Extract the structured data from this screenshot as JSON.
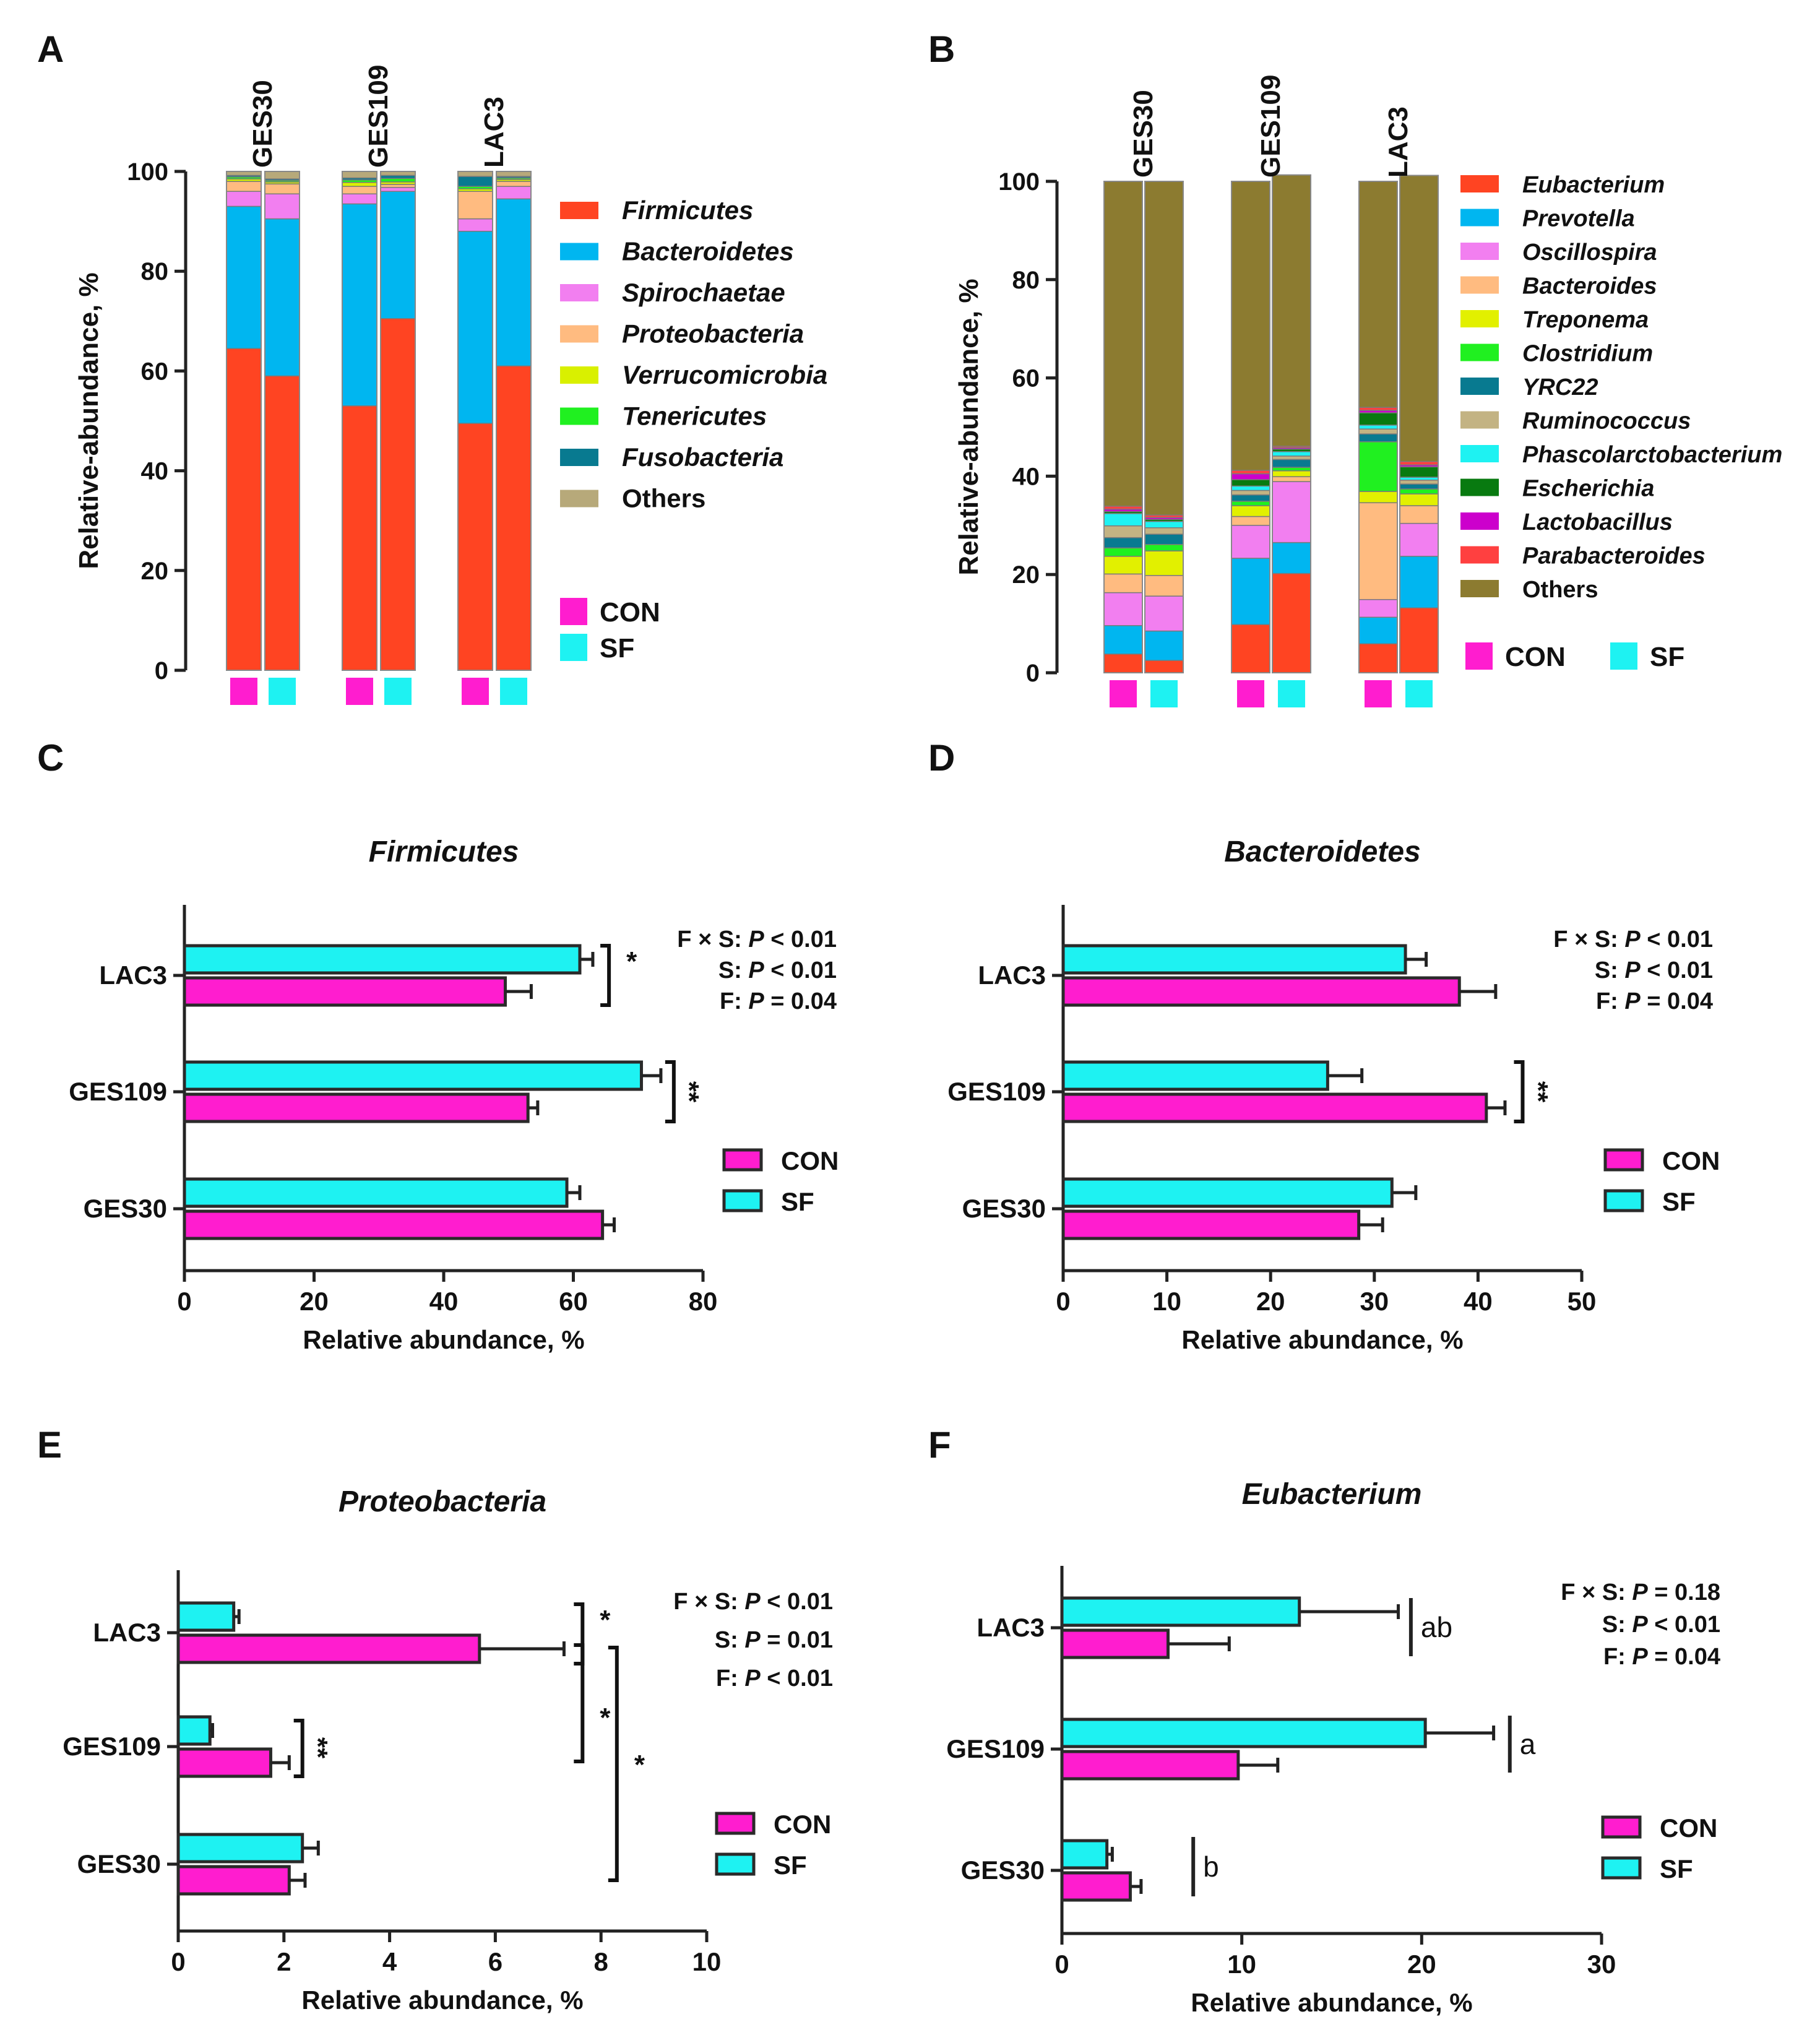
{
  "colors": {
    "CON": "#ff1dcf",
    "SF": "#1ef2f2",
    "Firmicutes": "#ff4422",
    "Bacteroidetes": "#00b6f0",
    "Spirochaetae": "#f27ff0",
    "Proteobacteria": "#ffbb80",
    "Verrucomicrobia": "#d9f000",
    "Tenericutes": "#20f020",
    "Fusobacteria": "#087a90",
    "Others": "#b7a97a",
    "Eubacterium": "#ff4422",
    "Prevotella": "#00b6f0",
    "Oscillospira": "#f27ff0",
    "Bacteroides": "#ffbb80",
    "Treponema": "#e2f000",
    "Clostridium": "#20f020",
    "YRC22": "#087a90",
    "Ruminococcus": "#c3b383",
    "Phascolarctobacterium": "#1ef2f2",
    "Escherichia": "#087a10",
    "Lactobacillus": "#cc00cc",
    "Parabacteroides": "#ff4040",
    "OthersGenus": "#8c7b30"
  },
  "panels": {
    "A": {
      "label": "A"
    },
    "B": {
      "label": "B"
    },
    "C": {
      "label": "C"
    },
    "D": {
      "label": "D"
    },
    "E": {
      "label": "E"
    },
    "F": {
      "label": "F"
    }
  },
  "chart_data": [
    {
      "id": "A",
      "type": "bar",
      "stacked": true,
      "ylabel": "Relative-abundance, %",
      "ylim": [
        0,
        100
      ],
      "yticks": [
        "0",
        "20",
        "40",
        "60",
        "80",
        "100"
      ],
      "groups": [
        "GES30",
        "GES109",
        "LAC3"
      ],
      "treatments": [
        "CON",
        "SF"
      ],
      "legend": [
        {
          "name": "Firmicutes",
          "italic": true
        },
        {
          "name": "Bacteroidetes",
          "italic": true
        },
        {
          "name": "Spirochaetae",
          "italic": true
        },
        {
          "name": "Proteobacteria",
          "italic": true
        },
        {
          "name": "Verrucomicrobia",
          "italic": true
        },
        {
          "name": "Tenericutes",
          "italic": true
        },
        {
          "name": "Fusobacteria",
          "italic": true
        },
        {
          "name": "Others",
          "italic": false
        }
      ],
      "treatment_legend": [
        "CON",
        "SF"
      ],
      "series": [
        {
          "name": "Firmicutes",
          "values": [
            64.5,
            59.0,
            53.0,
            70.5,
            49.5,
            61.0
          ]
        },
        {
          "name": "Bacteroidetes",
          "values": [
            28.5,
            31.5,
            40.5,
            25.5,
            38.5,
            33.5
          ]
        },
        {
          "name": "Spirochaetae",
          "values": [
            3.0,
            5.0,
            2.0,
            0.8,
            2.5,
            2.5
          ]
        },
        {
          "name": "Proteobacteria",
          "values": [
            2.0,
            2.0,
            1.5,
            0.6,
            5.5,
            1.0
          ]
        },
        {
          "name": "Verrucomicrobia",
          "values": [
            0.5,
            0.4,
            0.8,
            0.5,
            0.5,
            0.4
          ]
        },
        {
          "name": "Tenericutes",
          "values": [
            0.4,
            0.3,
            0.5,
            0.7,
            0.5,
            0.3
          ]
        },
        {
          "name": "Fusobacteria",
          "values": [
            0.3,
            0.3,
            0.4,
            0.6,
            2.0,
            0.3
          ]
        },
        {
          "name": "Others",
          "values": [
            0.8,
            1.5,
            1.3,
            0.8,
            1.0,
            1.0
          ]
        }
      ]
    },
    {
      "id": "B",
      "type": "bar",
      "stacked": true,
      "ylabel": "Relative-abundance, %",
      "ylim": [
        0,
        100
      ],
      "yticks": [
        "0",
        "20",
        "40",
        "60",
        "80",
        "100"
      ],
      "groups": [
        "GES30",
        "GES109",
        "LAC3"
      ],
      "treatments": [
        "CON",
        "SF"
      ],
      "legend": [
        {
          "name": "Eubacterium",
          "italic": true
        },
        {
          "name": "Prevotella",
          "italic": true
        },
        {
          "name": "Oscillospira",
          "italic": true
        },
        {
          "name": "Bacteroides",
          "italic": true
        },
        {
          "name": "Treponema",
          "italic": true
        },
        {
          "name": "Clostridium",
          "italic": true
        },
        {
          "name": "YRC22",
          "italic": true
        },
        {
          "name": "Ruminococcus",
          "italic": true
        },
        {
          "name": "Phascolarctobacterium",
          "italic": true
        },
        {
          "name": "Escherichia",
          "italic": true
        },
        {
          "name": "Lactobacillus",
          "italic": true
        },
        {
          "name": "Parabacteroides",
          "italic": true
        },
        {
          "name": "Others",
          "italic": false
        }
      ],
      "treatment_legend": [
        "CON",
        "SF"
      ],
      "series": [
        {
          "name": "Eubacterium",
          "values": [
            3.8,
            2.5,
            9.8,
            20.2,
            5.9,
            13.2
          ]
        },
        {
          "name": "Prevotella",
          "values": [
            5.8,
            6.0,
            13.5,
            6.3,
            5.4,
            10.5
          ]
        },
        {
          "name": "Oscillospira",
          "values": [
            6.7,
            7.1,
            6.7,
            12.4,
            3.6,
            6.7
          ]
        },
        {
          "name": "Bacteroides",
          "values": [
            3.8,
            4.2,
            1.8,
            1.0,
            19.7,
            3.6
          ]
        },
        {
          "name": "Treponema",
          "values": [
            3.6,
            5.0,
            2.2,
            1.2,
            2.3,
            2.4
          ]
        },
        {
          "name": "Clostridium",
          "values": [
            1.7,
            1.3,
            0.9,
            0.7,
            10.1,
            1.0
          ]
        },
        {
          "name": "YRC22",
          "values": [
            2.1,
            2.1,
            1.3,
            1.6,
            1.6,
            1.0
          ]
        },
        {
          "name": "Ruminococcus",
          "values": [
            2.4,
            1.3,
            0.9,
            0.7,
            1.0,
            0.8
          ]
        },
        {
          "name": "Phascolarctobacterium",
          "values": [
            2.5,
            1.3,
            0.9,
            0.9,
            0.8,
            0.6
          ]
        },
        {
          "name": "Escherichia",
          "values": [
            0.4,
            0.4,
            1.3,
            0.5,
            2.5,
            2.1
          ]
        },
        {
          "name": "Lactobacillus",
          "values": [
            0.5,
            0.4,
            1.2,
            0.3,
            0.5,
            0.4
          ]
        },
        {
          "name": "Parabacteroides",
          "values": [
            0.6,
            0.5,
            0.7,
            0.3,
            0.6,
            0.7
          ]
        },
        {
          "name": "Others",
          "values": [
            66.1,
            67.9,
            58.8,
            55.2,
            46.0,
            58.2
          ]
        }
      ]
    },
    {
      "id": "C",
      "type": "bar",
      "orientation": "horizontal",
      "title": "Firmicutes",
      "title_italic": true,
      "xlabel": "Relative abundance, %",
      "xlim": [
        0,
        80
      ],
      "xticks": [
        "0",
        "20",
        "40",
        "60",
        "80"
      ],
      "groups": [
        "GES30",
        "GES109",
        "LAC3"
      ],
      "series": [
        {
          "name": "CON",
          "values": [
            64.5,
            53.0,
            49.5
          ],
          "errors": [
            1.8,
            1.5,
            4.0
          ]
        },
        {
          "name": "SF",
          "values": [
            59.0,
            70.5,
            61.0
          ],
          "errors": [
            2.0,
            3.0,
            2.0
          ]
        }
      ],
      "significance": [
        {
          "group": "LAC3",
          "label": "*",
          "type": "pair"
        },
        {
          "group": "GES109",
          "label": "**",
          "type": "pair",
          "rotated": true
        }
      ],
      "stats": [
        {
          "prefix": "F × S: ",
          "p": "P",
          "suffix": " < 0.01"
        },
        {
          "prefix": "S: ",
          "p": "P",
          "suffix": " < 0.01"
        },
        {
          "prefix": "F: ",
          "p": "P",
          "suffix": " = 0.04"
        }
      ],
      "legend": [
        "CON",
        "SF"
      ]
    },
    {
      "id": "D",
      "type": "bar",
      "orientation": "horizontal",
      "title": "Bacteroidetes",
      "title_italic": true,
      "xlabel": "Relative abundance, %",
      "xlim": [
        0,
        50
      ],
      "xticks": [
        "0",
        "10",
        "20",
        "30",
        "40",
        "50"
      ],
      "groups": [
        "GES30",
        "GES109",
        "LAC3"
      ],
      "series": [
        {
          "name": "CON",
          "values": [
            28.5,
            40.8,
            38.2
          ],
          "errors": [
            2.3,
            1.8,
            3.5
          ]
        },
        {
          "name": "SF",
          "values": [
            31.7,
            25.5,
            33.0
          ],
          "errors": [
            2.3,
            3.3,
            2.0
          ]
        }
      ],
      "significance": [
        {
          "group": "GES109",
          "label": "**",
          "type": "pair",
          "rotated": true
        }
      ],
      "stats": [
        {
          "prefix": "F × S: ",
          "p": "P",
          "suffix": " < 0.01"
        },
        {
          "prefix": "S: ",
          "p": "P",
          "suffix": " < 0.01"
        },
        {
          "prefix": "F: ",
          "p": "P",
          "suffix": " = 0.04"
        }
      ],
      "legend": [
        "CON",
        "SF"
      ]
    },
    {
      "id": "E",
      "type": "bar",
      "orientation": "horizontal",
      "title": "Proteobacteria",
      "title_italic": true,
      "xlabel": "Relative abundance, %",
      "xlim": [
        0,
        10
      ],
      "xticks": [
        "0",
        "2",
        "4",
        "6",
        "8",
        "10"
      ],
      "groups": [
        "GES30",
        "GES109",
        "LAC3"
      ],
      "series": [
        {
          "name": "CON",
          "values": [
            2.1,
            1.75,
            5.7
          ],
          "errors": [
            0.3,
            0.35,
            1.6
          ]
        },
        {
          "name": "SF",
          "values": [
            2.35,
            0.6,
            1.05
          ],
          "errors": [
            0.3,
            0.05,
            0.1
          ]
        }
      ],
      "significance": [
        {
          "group": "LAC3",
          "label": "*",
          "type": "pair"
        },
        {
          "group": "GES109",
          "label": "**",
          "type": "pair",
          "rotated": true
        },
        {
          "from": "GES109",
          "to": "LAC3",
          "label": "*",
          "type": "between"
        },
        {
          "from": "GES30",
          "to": "LAC3",
          "label": "*",
          "type": "between"
        }
      ],
      "stats": [
        {
          "prefix": "F × S: ",
          "p": "P",
          "suffix": " < 0.01"
        },
        {
          "prefix": "S: ",
          "p": "P",
          "suffix": " = 0.01"
        },
        {
          "prefix": "F: ",
          "p": "P",
          "suffix": " < 0.01"
        }
      ],
      "legend": [
        "CON",
        "SF"
      ]
    },
    {
      "id": "F",
      "type": "bar",
      "orientation": "horizontal",
      "title": "Eubacterium",
      "title_italic": true,
      "xlabel": "Relative abundance, %",
      "xlim": [
        0,
        30
      ],
      "xticks": [
        "0",
        "10",
        "20",
        "30"
      ],
      "groups": [
        "GES30",
        "GES109",
        "LAC3"
      ],
      "series": [
        {
          "name": "CON",
          "values": [
            3.8,
            9.8,
            5.9
          ],
          "errors": [
            0.6,
            2.2,
            3.4
          ]
        },
        {
          "name": "SF",
          "values": [
            2.5,
            20.2,
            13.2
          ],
          "errors": [
            0.3,
            3.8,
            5.5
          ]
        }
      ],
      "significance": [
        {
          "group": "LAC3",
          "label": "ab",
          "type": "letter"
        },
        {
          "group": "GES109",
          "label": "a",
          "type": "letter"
        },
        {
          "group": "GES30",
          "label": "b",
          "type": "letter"
        }
      ],
      "stats": [
        {
          "prefix": "F × S: ",
          "p": "P",
          "suffix": " = 0.18"
        },
        {
          "prefix": "S: ",
          "p": "P",
          "suffix": " < 0.01"
        },
        {
          "prefix": "F: ",
          "p": "P",
          "suffix": " = 0.04"
        }
      ],
      "legend": [
        "CON",
        "SF"
      ]
    }
  ]
}
